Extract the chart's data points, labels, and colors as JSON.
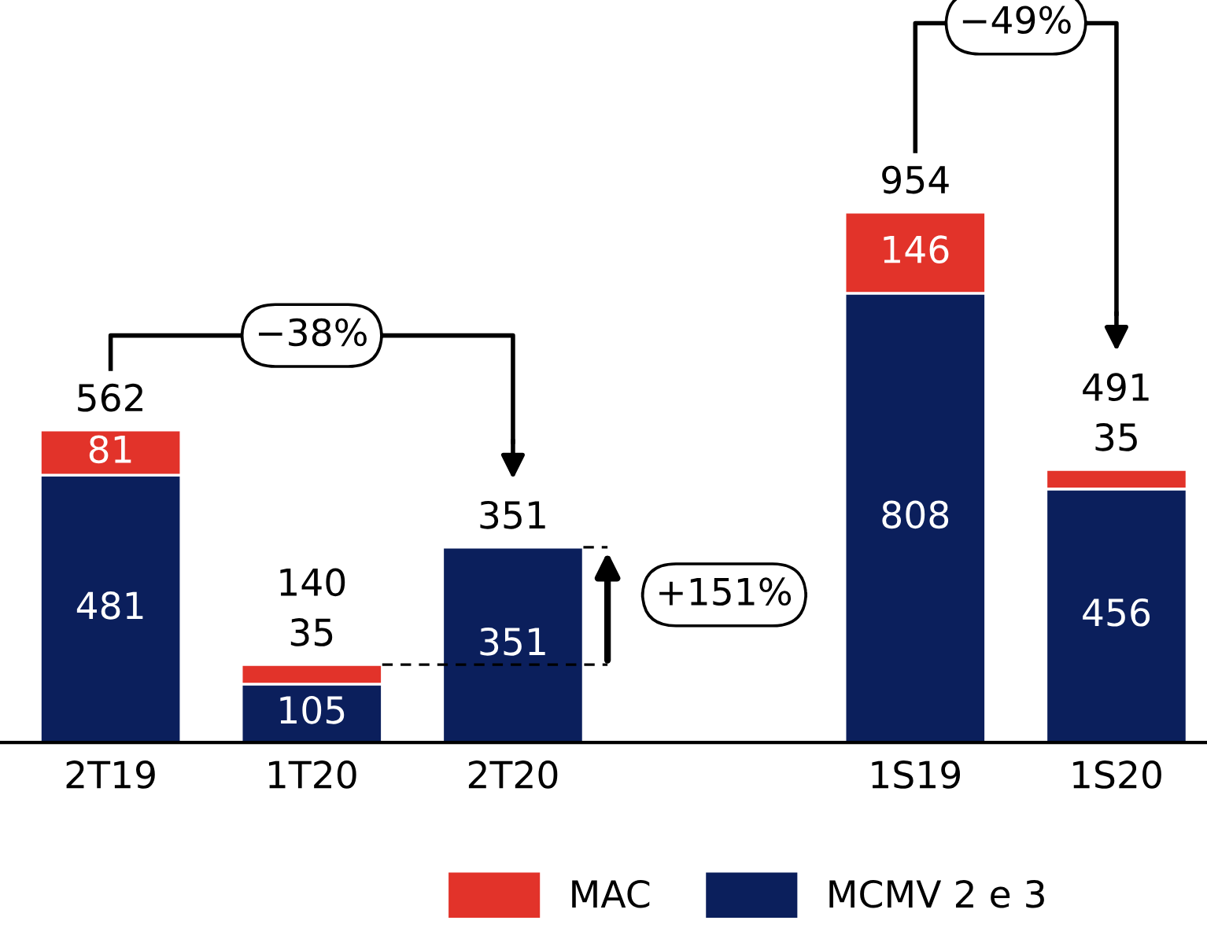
{
  "chart_data": {
    "type": "bar",
    "stacked": true,
    "categories": [
      "2T19",
      "1T20",
      "2T20",
      null,
      "1S19",
      "1S20"
    ],
    "series": [
      {
        "name": "MCMV 2 e 3",
        "color": "#0b1f5c",
        "values": [
          481,
          105,
          351,
          null,
          808,
          456
        ]
      },
      {
        "name": "MAC",
        "color": "#e2332a",
        "values": [
          81,
          35,
          null,
          null,
          146,
          35
        ]
      }
    ],
    "totals": [
      "562",
      "140",
      "351",
      null,
      "954",
      "491"
    ],
    "data_labels": true,
    "legend": "bottom",
    "tick_labels": "x",
    "grid": false,
    "annotations": [
      "−38%",
      "+151%",
      "−49%"
    ]
  }
}
